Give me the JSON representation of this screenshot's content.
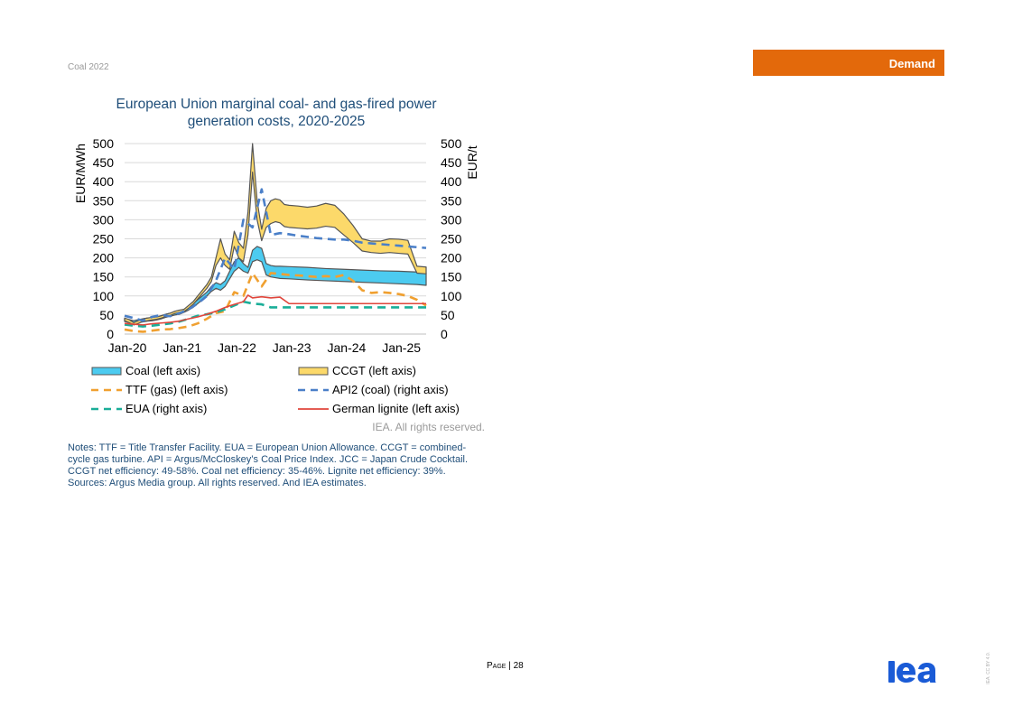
{
  "header": {
    "doc_title": "Coal 2022",
    "section": "Demand"
  },
  "chart_data": {
    "type": "line",
    "title": "European Union marginal coal- and gas-fired power generation costs, 2020-2025",
    "ylabel_left": "EUR/MWh",
    "ylabel_right": "EUR/t",
    "ylim": [
      0,
      500
    ],
    "y_ticks": [
      0,
      50,
      100,
      150,
      200,
      250,
      300,
      350,
      400,
      450,
      500
    ],
    "x_ticks": [
      "Jan-20",
      "Jan-21",
      "Jan-22",
      "Jan-23",
      "Jan-24",
      "Jan-25"
    ],
    "x_tick_positions": [
      0,
      12,
      24,
      36,
      48,
      60
    ],
    "xlim": [
      0,
      66
    ],
    "colors": {
      "coal": "#4ccbf0",
      "ccgt": "#fcd96a",
      "band_edge": "#555555",
      "ttf": "#f0a030",
      "api2": "#4a7fc8",
      "eua": "#1aae98",
      "lignite": "#e0463c"
    },
    "bands": [
      {
        "name": "Coal (left axis)",
        "key": "coal",
        "x": [
          0,
          1,
          2,
          3,
          4,
          5,
          6,
          7,
          8,
          9,
          10,
          11,
          12,
          13,
          14,
          15,
          16,
          17,
          18,
          19,
          20,
          21,
          22,
          23,
          24,
          25,
          26,
          27,
          28,
          29,
          30,
          31,
          32,
          33,
          34,
          36,
          40,
          44,
          48,
          52,
          56,
          60,
          64,
          66
        ],
        "upper": [
          40,
          38,
          35,
          38,
          40,
          42,
          42,
          44,
          48,
          52,
          55,
          58,
          60,
          65,
          72,
          80,
          90,
          100,
          110,
          125,
          135,
          130,
          140,
          165,
          190,
          200,
          185,
          175,
          220,
          230,
          225,
          185,
          180,
          178,
          178,
          177,
          175,
          172,
          170,
          168,
          166,
          165,
          163,
          160
        ],
        "lower": [
          33,
          30,
          27,
          30,
          32,
          34,
          35,
          37,
          40,
          44,
          47,
          50,
          52,
          57,
          63,
          70,
          80,
          90,
          100,
          112,
          120,
          115,
          125,
          145,
          165,
          175,
          165,
          160,
          190,
          195,
          190,
          155,
          150,
          148,
          146,
          145,
          142,
          140,
          138,
          136,
          134,
          132,
          130,
          128
        ]
      },
      {
        "name": "CCGT (left axis)",
        "key": "ccgt",
        "x": [
          0,
          1,
          2,
          3,
          4,
          5,
          6,
          7,
          8,
          9,
          10,
          11,
          12,
          13,
          14,
          15,
          16,
          17,
          18,
          19,
          20,
          21,
          22,
          23,
          24,
          25,
          26,
          27,
          28,
          29,
          30,
          31,
          32,
          33,
          34,
          35,
          36,
          38,
          40,
          42,
          44,
          46,
          48,
          50,
          52,
          54,
          56,
          58,
          60,
          62,
          64,
          66
        ],
        "upper": [
          42,
          38,
          30,
          35,
          40,
          42,
          44,
          45,
          48,
          52,
          55,
          60,
          63,
          65,
          75,
          85,
          100,
          115,
          130,
          150,
          200,
          250,
          210,
          195,
          270,
          240,
          225,
          320,
          500,
          350,
          275,
          330,
          350,
          355,
          352,
          340,
          338,
          336,
          333,
          336,
          343,
          338,
          315,
          285,
          250,
          244,
          244,
          250,
          249,
          246,
          178,
          176
        ],
        "lower": [
          35,
          30,
          24,
          28,
          33,
          35,
          37,
          39,
          42,
          46,
          49,
          54,
          57,
          59,
          68,
          78,
          92,
          106,
          120,
          138,
          180,
          200,
          180,
          170,
          230,
          200,
          190,
          260,
          425,
          300,
          245,
          280,
          290,
          295,
          292,
          282,
          280,
          278,
          276,
          278,
          283,
          280,
          260,
          240,
          218,
          214,
          212,
          214,
          212,
          210,
          160,
          158
        ]
      }
    ],
    "series": [
      {
        "name": "TTF (gas) (left axis)",
        "key": "ttf",
        "dash": true,
        "axis": "left",
        "x": [
          0,
          2,
          4,
          6,
          8,
          10,
          12,
          14,
          16,
          18,
          20,
          22,
          24,
          26,
          28,
          30,
          32,
          34,
          36,
          38,
          40,
          42,
          44,
          46,
          48,
          50,
          52,
          54,
          56,
          58,
          60,
          62,
          64,
          66
        ],
        "values": [
          12,
          8,
          6,
          9,
          12,
          13,
          16,
          20,
          28,
          40,
          55,
          60,
          110,
          100,
          160,
          125,
          160,
          158,
          155,
          154,
          152,
          150,
          152,
          150,
          155,
          140,
          115,
          108,
          110,
          108,
          105,
          100,
          90,
          75
        ]
      },
      {
        "name": "API2 (coal) (right axis)",
        "key": "api2",
        "dash": true,
        "axis": "right",
        "x": [
          0,
          2,
          4,
          6,
          8,
          10,
          12,
          14,
          16,
          18,
          20,
          22,
          24,
          26,
          28,
          30,
          32,
          34,
          36,
          38,
          40,
          42,
          44,
          46,
          48,
          50,
          52,
          54,
          56,
          58,
          60,
          62,
          64,
          66
        ],
        "values": [
          48,
          42,
          35,
          45,
          50,
          47,
          55,
          65,
          80,
          100,
          140,
          200,
          170,
          300,
          280,
          380,
          260,
          265,
          262,
          258,
          255,
          252,
          250,
          248,
          248,
          245,
          240,
          238,
          236,
          234,
          232,
          230,
          228,
          226
        ]
      },
      {
        "name": "EUA (right axis)",
        "key": "eua",
        "dash": true,
        "axis": "right",
        "x": [
          0,
          2,
          4,
          6,
          8,
          10,
          12,
          14,
          16,
          18,
          20,
          22,
          24,
          26,
          28,
          30,
          32,
          34,
          36,
          38,
          40,
          44,
          48,
          52,
          56,
          60,
          64,
          66
        ],
        "values": [
          25,
          22,
          20,
          22,
          25,
          28,
          33,
          40,
          48,
          52,
          57,
          65,
          75,
          85,
          80,
          78,
          70,
          70,
          70,
          70,
          70,
          70,
          70,
          70,
          70,
          70,
          70,
          70
        ]
      },
      {
        "name": "German lignite (left axis)",
        "key": "lignite",
        "dash": false,
        "axis": "left",
        "x": [
          0,
          2,
          4,
          6,
          8,
          10,
          12,
          14,
          16,
          18,
          20,
          22,
          24,
          26,
          27,
          28,
          30,
          32,
          34,
          36,
          40,
          44,
          48,
          52,
          56,
          60,
          64,
          66
        ],
        "values": [
          28,
          26,
          24,
          27,
          29,
          31,
          34,
          40,
          45,
          52,
          60,
          70,
          78,
          85,
          102,
          95,
          98,
          95,
          97,
          80,
          80,
          80,
          80,
          80,
          80,
          80,
          80,
          80
        ]
      }
    ],
    "legend": [
      {
        "label": "Coal (left axis)",
        "key": "coal",
        "kind": "band"
      },
      {
        "label": "CCGT (left axis)",
        "key": "ccgt",
        "kind": "band"
      },
      {
        "label": "TTF (gas) (left axis)",
        "key": "ttf",
        "kind": "dash"
      },
      {
        "label": "API2 (coal) (right axis)",
        "key": "api2",
        "kind": "dash"
      },
      {
        "label": "EUA (right axis)",
        "key": "eua",
        "kind": "dash"
      },
      {
        "label": "German lignite (left axis)",
        "key": "lignite",
        "kind": "solid"
      }
    ],
    "credit": "IEA. All rights reserved."
  },
  "notes": {
    "text": "Notes: TTF = Title Transfer Facility. EUA = European Union Allowance. CCGT = combined-cycle gas turbine. API = Argus/McCloskey’s Coal Price Index. JCC = Japan Crude Cocktail. CCGT net efficiency: 49-58%. Coal net efficiency: 35-46%. Lignite net efficiency: 39%.",
    "sources": "Sources: Argus Media group. All rights reserved. And IEA estimates."
  },
  "footer": {
    "page_label": "Page",
    "page_number": "28",
    "logo_text": "iea",
    "license": "IEA. CC BY 4.0."
  }
}
